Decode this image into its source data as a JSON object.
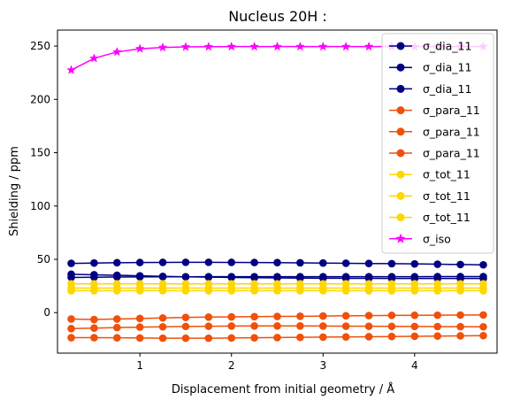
{
  "chart_data": {
    "type": "line",
    "title": "Nucleus 20H :",
    "xlabel": "Displacement from initial geometry / Å",
    "ylabel": "Shielding / ppm",
    "xlim": [
      0.1,
      4.9
    ],
    "ylim": [
      -38,
      265
    ],
    "xticks": [
      1,
      2,
      3,
      4
    ],
    "yticks": [
      0,
      50,
      100,
      150,
      200,
      250
    ],
    "grid": false,
    "legend_position": "top-right",
    "x": [
      0.25,
      0.5,
      0.75,
      1.0,
      1.25,
      1.5,
      1.75,
      2.0,
      2.25,
      2.5,
      2.75,
      3.0,
      3.25,
      3.5,
      3.75,
      4.0,
      4.25,
      4.5,
      4.75
    ],
    "series": [
      {
        "name": "σ_dia_11",
        "color": "#000080",
        "marker": "circle",
        "values": [
          46.2,
          46.5,
          46.8,
          47.0,
          47.1,
          47.2,
          47.2,
          47.1,
          47.0,
          46.9,
          46.7,
          46.5,
          46.3,
          46.1,
          45.9,
          45.7,
          45.4,
          45.1,
          44.8
        ]
      },
      {
        "name": "σ_dia_11",
        "color": "#000080",
        "marker": "circle",
        "values": [
          36.0,
          35.5,
          35.0,
          34.5,
          34.0,
          33.6,
          33.3,
          33.0,
          32.8,
          32.6,
          32.4,
          32.3,
          32.2,
          32.1,
          32.0,
          32.0,
          32.0,
          32.0,
          32.0
        ]
      },
      {
        "name": "σ_dia_11",
        "color": "#000080",
        "marker": "circle",
        "values": [
          33.0,
          33.2,
          33.4,
          33.5,
          33.6,
          33.6,
          33.7,
          33.7,
          33.7,
          33.7,
          33.7,
          33.7,
          33.7,
          33.7,
          33.7,
          33.7,
          33.8,
          33.8,
          33.8
        ]
      },
      {
        "name": "σ_para_11",
        "color": "#f0500a",
        "marker": "circle",
        "values": [
          -6.0,
          -6.5,
          -6.0,
          -5.5,
          -5.0,
          -4.5,
          -4.2,
          -4.0,
          -3.8,
          -3.6,
          -3.4,
          -3.2,
          -3.0,
          -2.8,
          -2.6,
          -2.5,
          -2.4,
          -2.3,
          -2.2
        ]
      },
      {
        "name": "σ_para_11",
        "color": "#f0500a",
        "marker": "circle",
        "values": [
          -15.0,
          -14.5,
          -14.0,
          -13.6,
          -13.3,
          -13.0,
          -12.8,
          -12.6,
          -12.5,
          -12.5,
          -12.5,
          -12.6,
          -12.7,
          -12.8,
          -12.9,
          -13.0,
          -13.1,
          -13.2,
          -13.3
        ]
      },
      {
        "name": "σ_para_11",
        "color": "#f0500a",
        "marker": "circle",
        "values": [
          -23.5,
          -23.5,
          -23.6,
          -23.8,
          -24.0,
          -24.0,
          -24.0,
          -23.8,
          -23.6,
          -23.4,
          -23.2,
          -23.0,
          -22.8,
          -22.6,
          -22.4,
          -22.2,
          -22.0,
          -21.8,
          -21.6
        ]
      },
      {
        "name": "σ_tot_11",
        "color": "#ffd700",
        "marker": "circle",
        "values": [
          27.0,
          27.0,
          27.0,
          27.0,
          27.0,
          27.0,
          27.0,
          27.0,
          27.0,
          27.0,
          27.0,
          27.0,
          27.0,
          27.0,
          27.0,
          27.0,
          27.0,
          27.0,
          27.0
        ]
      },
      {
        "name": "σ_tot_11",
        "color": "#ffd700",
        "marker": "circle",
        "values": [
          23.0,
          23.0,
          23.0,
          23.0,
          23.0,
          23.0,
          23.0,
          23.0,
          23.0,
          23.0,
          23.0,
          23.0,
          23.0,
          23.0,
          23.0,
          23.0,
          23.0,
          23.0,
          23.0
        ]
      },
      {
        "name": "σ_tot_11",
        "color": "#ffd700",
        "marker": "circle",
        "values": [
          20.5,
          20.5,
          20.5,
          20.5,
          20.5,
          20.5,
          20.5,
          20.5,
          20.5,
          20.5,
          20.5,
          20.5,
          20.5,
          20.5,
          20.5,
          20.5,
          20.5,
          20.5,
          20.5
        ]
      },
      {
        "name": "σ_iso",
        "color": "#ff00ff",
        "marker": "star",
        "values": [
          227.5,
          238.5,
          244.5,
          247.5,
          248.7,
          249.2,
          249.4,
          249.5,
          249.5,
          249.5,
          249.5,
          249.5,
          249.5,
          249.5,
          249.5,
          249.5,
          249.5,
          249.5,
          249.5
        ]
      }
    ]
  }
}
